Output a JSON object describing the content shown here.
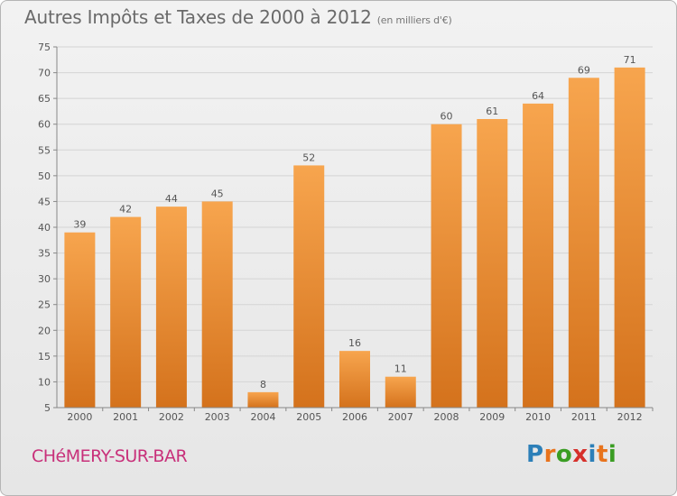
{
  "title": "Autres Impôts et Taxes de 2000 à 2012",
  "unit": "(en milliers d'€)",
  "city": "CHéMERY-SUR-BAR",
  "logo": {
    "text": "Proxiti",
    "letter_colors": [
      "#2c7fb8",
      "#e8731c",
      "#3a9d23",
      "#d6302b",
      "#2c7fb8",
      "#e8731c",
      "#3a9d23"
    ]
  },
  "colors": {
    "bar_top": "#f7a54e",
    "bar_bottom": "#d4721c",
    "axis": "#888888",
    "grid": "#d4d4d4",
    "text": "#555555",
    "city": "#c8307a"
  },
  "chart_data": {
    "type": "bar",
    "categories": [
      "2000",
      "2001",
      "2002",
      "2003",
      "2004",
      "2005",
      "2006",
      "2007",
      "2008",
      "2009",
      "2010",
      "2011",
      "2012"
    ],
    "values": [
      39,
      42,
      44,
      45,
      8,
      52,
      16,
      11,
      60,
      61,
      64,
      69,
      71
    ],
    "ylim": [
      5,
      75
    ],
    "yticks": [
      5,
      10,
      15,
      20,
      25,
      30,
      35,
      40,
      45,
      50,
      55,
      60,
      65,
      70,
      75
    ],
    "grid": true,
    "data_labels": true
  }
}
